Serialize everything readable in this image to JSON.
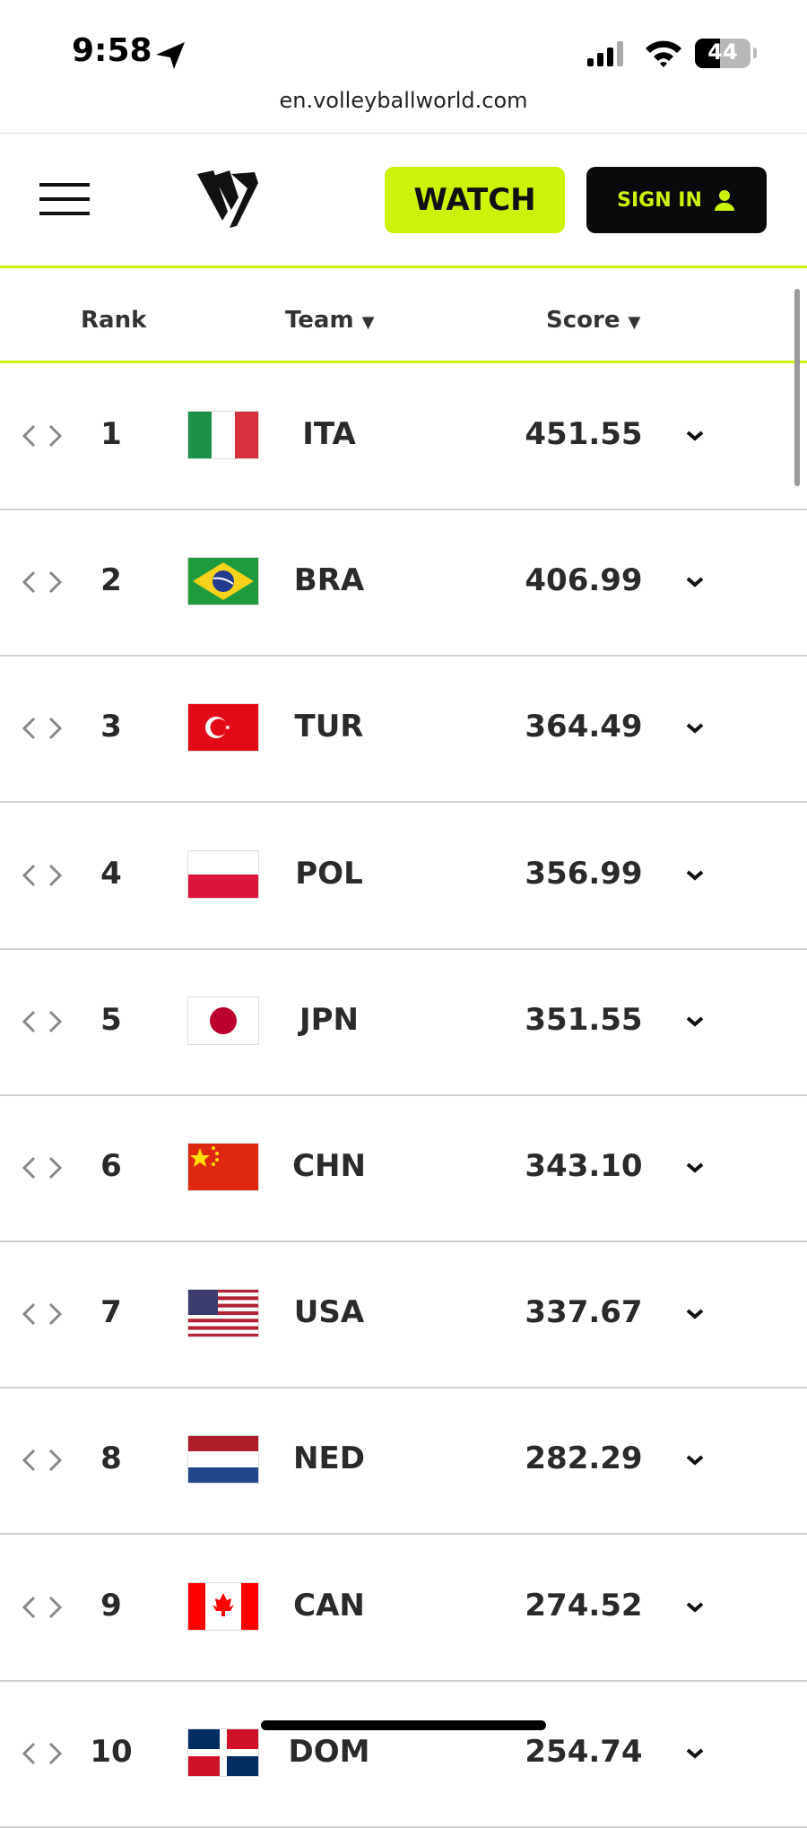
{
  "status_bar": {
    "time": "9:58",
    "battery": "44"
  },
  "url": "en.volleyballworld.com",
  "nav": {
    "watch": "WATCH",
    "sign_in": "SIGN IN"
  },
  "table": {
    "headers": {
      "rank": "Rank",
      "team": "Team",
      "score": "Score"
    },
    "rows": [
      {
        "rank": "1",
        "team": "ITA",
        "score": "451.55"
      },
      {
        "rank": "2",
        "team": "BRA",
        "score": "406.99"
      },
      {
        "rank": "3",
        "team": "TUR",
        "score": "364.49"
      },
      {
        "rank": "4",
        "team": "POL",
        "score": "356.99"
      },
      {
        "rank": "5",
        "team": "JPN",
        "score": "351.55"
      },
      {
        "rank": "6",
        "team": "CHN",
        "score": "343.10"
      },
      {
        "rank": "7",
        "team": "USA",
        "score": "337.67"
      },
      {
        "rank": "8",
        "team": "NED",
        "score": "282.29"
      },
      {
        "rank": "9",
        "team": "CAN",
        "score": "274.52"
      },
      {
        "rank": "10",
        "team": "DOM",
        "score": "254.74"
      }
    ]
  }
}
